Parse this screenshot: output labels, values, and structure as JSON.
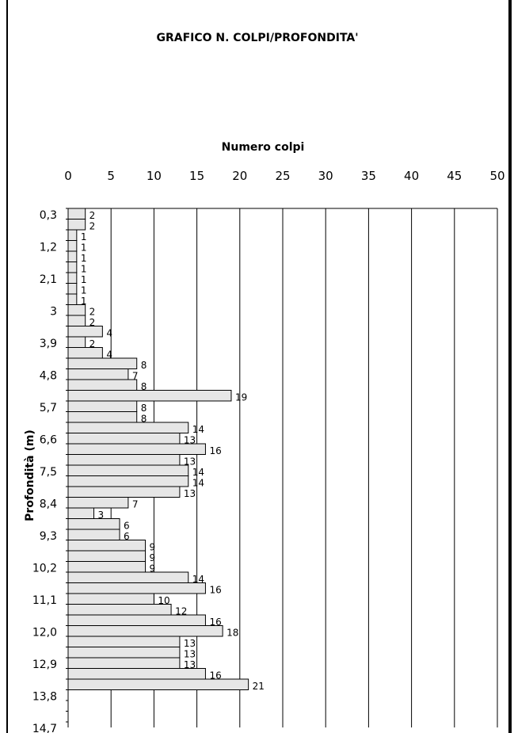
{
  "chart_data": {
    "type": "bar",
    "orientation": "horizontal",
    "title": "GRAFICO N. COLPI/PROFONDITA'",
    "xlabel": "Numero colpi",
    "ylabel": "Profondità (m)",
    "xlim": [
      0,
      50
    ],
    "x_ticks": [
      "0",
      "5",
      "10",
      "15",
      "20",
      "25",
      "30",
      "35",
      "40",
      "45",
      "50"
    ],
    "y_ticks": [
      "0,3",
      "1,2",
      "2,1",
      "3",
      "3,9",
      "4,8",
      "5,7",
      "6,6",
      "7,5",
      "8,4",
      "9,3",
      "10,2",
      "11,1",
      "12,0",
      "12,9",
      "13,8",
      "14,7"
    ],
    "depth_step": 0.3,
    "grid": "vertical",
    "values": [
      2,
      2,
      1,
      1,
      1,
      1,
      1,
      1,
      1,
      2,
      2,
      4,
      2,
      4,
      8,
      7,
      8,
      19,
      8,
      8,
      14,
      13,
      16,
      13,
      14,
      14,
      13,
      7,
      3,
      6,
      6,
      9,
      9,
      9,
      14,
      16,
      10,
      12,
      16,
      18,
      13,
      13,
      13,
      16,
      21
    ]
  }
}
